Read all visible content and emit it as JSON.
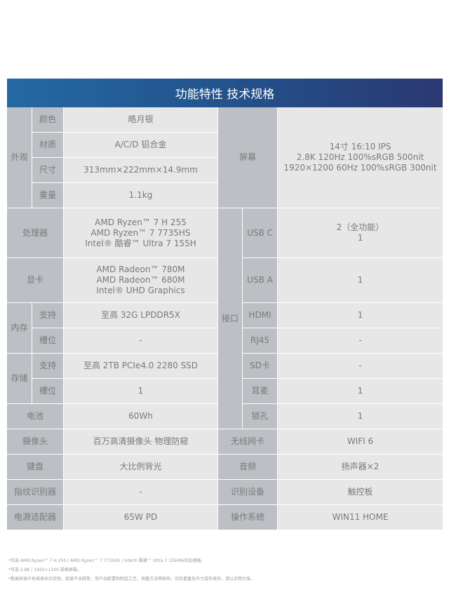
{
  "header": {
    "title": "功能特性 技术规格"
  },
  "left": {
    "appearance": "外观",
    "color_label": "颜色",
    "color": "皓月银",
    "material_label": "材质",
    "material": "A/C/D 铝合金",
    "size_label": "尺寸",
    "size": "313mm×222mm×14.9mm",
    "weight_label": "重量",
    "weight": "1.1kg",
    "cpu_label": "处理器",
    "cpu": "AMD Ryzen™ 7 H 255\nAMD Ryzen™ 7 7735HS\nIntel® 酷睿™ Ultra 7 155H",
    "gpu_label": "显卡",
    "gpu": "AMD Radeon™ 780M\nAMD Radeon™ 680M\nIntel® UHD Graphics",
    "memory": "内存",
    "mem_support_label": "支持",
    "mem_support": "至高 32G LPDDR5X",
    "mem_slot_label": "槽位",
    "mem_slot": "-",
    "storage": "存储",
    "sto_support_label": "支持",
    "sto_support": "至高 2TB PCIe4.0 2280 SSD",
    "sto_slot_label": "槽位",
    "sto_slot": "1",
    "battery_label": "电池",
    "battery": "60Wh",
    "camera_label": "摄像头",
    "camera": "百万高清摄像头 物理防窥",
    "keyboard_label": "键盘",
    "keyboard": "大比例背光",
    "fingerprint_label": "指纹识别器",
    "fingerprint": "-",
    "adapter_label": "电源适配器",
    "adapter": "65W PD"
  },
  "right": {
    "screen_label": "屏幕",
    "screen": "14寸 16:10 IPS\n2.8K 120Hz 100%sRGB 500nit\n1920×1200 60Hz 100%sRGB 300nit",
    "ports": "接口",
    "usbc_label": "USB C",
    "usbc": "2（全功能）\n1",
    "usba_label": "USB A",
    "usba": "1",
    "hdmi_label": "HDMI",
    "hdmi": "1",
    "rj45_label": "RJ45",
    "rj45": "-",
    "sd_label": "SD卡",
    "sd": "-",
    "audio_jack_label": "耳麦",
    "audio_jack": "1",
    "lock_label": "锁孔",
    "lock": "1",
    "wifi_label": "无线网卡",
    "wifi": "WIFI 6",
    "audio_label": "音频",
    "audio": "扬声器×2",
    "recog_label": "识别设备",
    "recog": "触控板",
    "os_label": "操作系统",
    "os": "WIN11 HOME"
  },
  "footnotes": [
    "*可选 AMD Ryzen™ 7 H 255 / AMD Ryzen™ 7 7735HS / Intel® 酷睿™ Ultra 7 155H标压处理器。",
    "*可选 2.8K / 1920×1200 规格屏幕。",
    "*数据来源于机械革命实验室。厚度不含脚垫，受产品配置和制造工艺、测量方法等影响，实际重量及尺寸或有差异，请以实物为准。"
  ]
}
